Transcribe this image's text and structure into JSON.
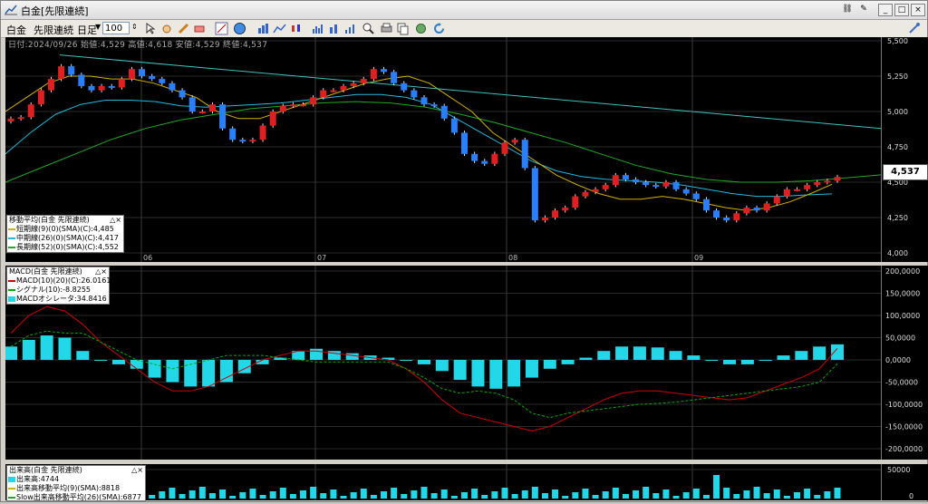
{
  "window": {
    "title": "白金[先限連続]"
  },
  "toolbar": {
    "symbol": "白金",
    "contract": "先限連続",
    "period": "日足",
    "count": "100"
  },
  "header_info": "日付:2024/09/26 始値:4,529 高値:4,618 安値:4,529 終値:4,537",
  "price_tag": "4,537",
  "price_axis": [
    "5,500",
    "5,250",
    "5,000",
    "4,750",
    "4,500",
    "4,250",
    "4,000"
  ],
  "months": [
    "06",
    "07",
    "08",
    "09"
  ],
  "ma_legend": {
    "title": "移動平均(白金 先限連続)",
    "items": [
      {
        "label": "短期線(9)(0)(SMA)(C):4,485",
        "color": "#d4b000"
      },
      {
        "label": "中期線(26)(0)(SMA)(C):4,417",
        "color": "#22bbdd"
      },
      {
        "label": "長期線(52)(0)(SMA)(C):4,552",
        "color": "#22aa22"
      }
    ]
  },
  "macd_legend": {
    "title": "MACD(白金 先限連続)",
    "items": [
      {
        "label": "MACD(10)(20)(C):26.0161",
        "color": "#d00000"
      },
      {
        "label": "シグナル(10):-8.8255",
        "color": "#00aa00"
      },
      {
        "label": "MACDオシレータ:34.8416",
        "color": "#22d8e8"
      }
    ]
  },
  "macd_axis": [
    "200,0000",
    "150,0000",
    "100,0000",
    "50,0000",
    "0,0000",
    "-50,0000",
    "-100,0000",
    "-150,0000",
    "-200,0000"
  ],
  "vol_legend": {
    "title": "出来高(白金 先限連続)",
    "items": [
      {
        "label": "出来高:4744",
        "color": "#22d8e8"
      },
      {
        "label": "出来高移動平均(9)(SMA):8818",
        "color": "#d4b000"
      },
      {
        "label": "Slow出来高移動平均(26)(SMA):6877",
        "color": "#22aa22"
      }
    ]
  },
  "vol_axis": [
    "50000",
    "0"
  ],
  "chart_data": {
    "type": "candlestick",
    "ylim": [
      4000,
      5500
    ],
    "last": {
      "date": "2024/09/26",
      "open": 4529,
      "high": 4618,
      "low": 4529,
      "close": 4537
    },
    "closes": [
      4950,
      4960,
      5050,
      5150,
      5230,
      5320,
      5260,
      5180,
      5150,
      5180,
      5170,
      5230,
      5300,
      5250,
      5230,
      5200,
      5150,
      5100,
      5000,
      5000,
      5050,
      4880,
      4800,
      4790,
      4800,
      4900,
      5000,
      5040,
      5050,
      5050,
      5100,
      5150,
      5150,
      5180,
      5200,
      5230,
      5300,
      5280,
      5200,
      5150,
      5100,
      5050,
      5040,
      4950,
      4850,
      4700,
      4650,
      4630,
      4700,
      4780,
      4800,
      4600,
      4230,
      4250,
      4300,
      4320,
      4400,
      4430,
      4450,
      4480,
      4550,
      4520,
      4500,
      4480,
      4470,
      4500,
      4450,
      4420,
      4380,
      4300,
      4250,
      4230,
      4280,
      4320,
      4300,
      4350,
      4400,
      4450,
      4450,
      4480,
      4500,
      4510,
      4537
    ],
    "ma_short": [
      5000,
      5100,
      5200,
      5250,
      5250,
      5230,
      5230,
      5200,
      5150,
      5100,
      5000,
      4950,
      4950,
      5000,
      5050,
      5100,
      5150,
      5200,
      5230,
      5250,
      5200,
      5100,
      5000,
      4850,
      4750,
      4650,
      4550,
      4480,
      4420,
      4380,
      4380,
      4400,
      4380,
      4350,
      4320,
      4300,
      4320,
      4360,
      4420,
      4485
    ],
    "ma_mid": [
      4700,
      4850,
      4980,
      5050,
      5080,
      5080,
      5070,
      5040,
      5030,
      5040,
      5050,
      5060,
      5080,
      5100,
      5120,
      5120,
      5100,
      5050,
      4950,
      4850,
      4750,
      4650,
      4580,
      4540,
      4520,
      4510,
      4500,
      4480,
      4450,
      4420,
      4400,
      4400,
      4410,
      4417
    ],
    "ma_long": [
      4500,
      4600,
      4700,
      4800,
      4880,
      4940,
      4980,
      5020,
      5040,
      5060,
      5070,
      5060,
      5030,
      4980,
      4920,
      4850,
      4780,
      4700,
      4620,
      4560,
      4520,
      4500,
      4500,
      4510,
      4530,
      4552
    ],
    "macd_hist": [
      30,
      45,
      55,
      50,
      20,
      0,
      -10,
      -20,
      -40,
      -50,
      -60,
      -60,
      -50,
      -30,
      -10,
      5,
      20,
      25,
      20,
      15,
      10,
      5,
      0,
      -10,
      -25,
      -45,
      -60,
      -65,
      -60,
      -40,
      -20,
      -10,
      5,
      20,
      30,
      30,
      28,
      20,
      10,
      0,
      -10,
      -10,
      0,
      10,
      20,
      30,
      35
    ],
    "volume_scale": 50000
  }
}
